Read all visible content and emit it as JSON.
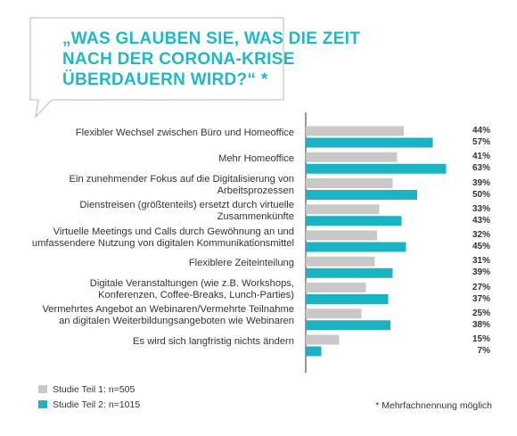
{
  "title_lines": [
    "„WAS GLAUBEN SIE, WAS DIE ZEIT",
    "NACH DER CORONA-KRISE",
    "ÜBERDAUERN WIRD?“ *"
  ],
  "colors": {
    "series1": "#c8c8c8",
    "series2": "#19b3c4",
    "title": "#1db8c9"
  },
  "legend": [
    {
      "label": "Studie Teil 1: n=505"
    },
    {
      "label": "Studie Teil 2: n=1015"
    }
  ],
  "footnote": "* Mehrfachnennung möglich",
  "chart_data": {
    "type": "bar",
    "orientation": "horizontal",
    "categories": [
      [
        "Flexibler Wechsel zwischen Büro und Homeoffice"
      ],
      [
        "Mehr Homeoffice"
      ],
      [
        "Ein zunehmender Fokus auf die Digitalisierung von",
        "Arbeitsprozessen"
      ],
      [
        "Dienstreisen (größtenteils) ersetzt durch virtuelle",
        "Zusammenkünfte"
      ],
      [
        "Virtuelle Meetings und Calls durch Gewöhnung an und",
        "umfassendere Nutzung von digitalen Kommunikationsmittel"
      ],
      [
        "Flexiblere Zeiteinteilung"
      ],
      [
        "Digitale Veranstaltungen (wie z.B. Workshops,",
        "Konferenzen, Coffee-Breaks, Lunch-Parties)"
      ],
      [
        "Vermehrtes Angebot an Webinaren/Vermehrte Teilnahme",
        "an digitalen Weiterbildungsangeboten wie Webinaren"
      ],
      [
        "Es wird sich langfristig nichts ändern"
      ]
    ],
    "series": [
      {
        "name": "Studie Teil 1: n=505",
        "values": [
          44,
          41,
          39,
          33,
          32,
          31,
          27,
          25,
          15
        ],
        "labels": [
          "44%",
          "41%",
          "39%",
          "33%",
          "32%",
          "31%",
          "27%",
          "25%",
          "15%"
        ]
      },
      {
        "name": "Studie Teil 2: n=1015",
        "values": [
          57,
          63,
          50,
          43,
          45,
          39,
          37,
          38,
          7
        ],
        "labels": [
          "57%",
          "63%",
          "50%",
          "43%",
          "45%",
          "39%",
          "37%",
          "38%",
          "7%"
        ]
      }
    ],
    "xlim": [
      0,
      63
    ],
    "unit": "%"
  }
}
